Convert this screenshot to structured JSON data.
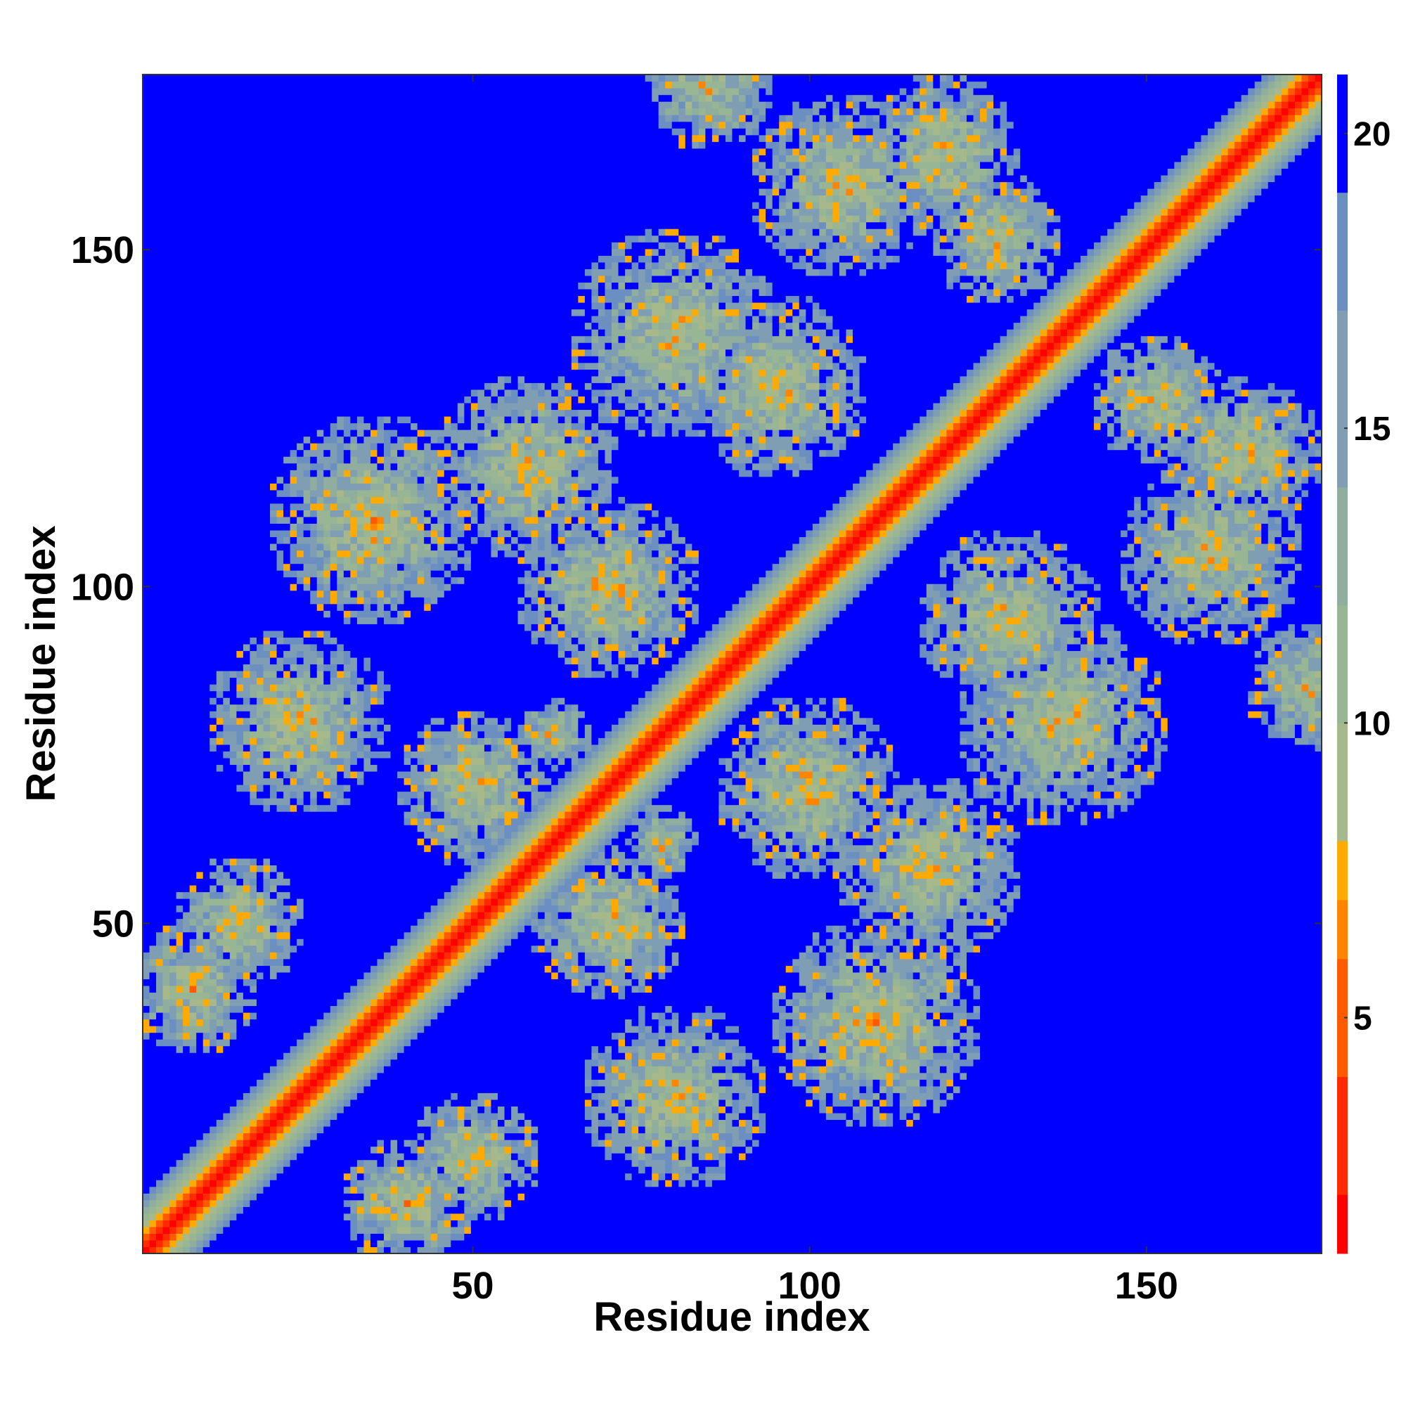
{
  "chart_data": {
    "type": "heatmap",
    "title": "",
    "xlabel": "Residue index",
    "ylabel": "Residue index",
    "n_residues": 176,
    "xlim": [
      1,
      176
    ],
    "ylim": [
      1,
      176
    ],
    "x_ticks": [
      50,
      100,
      150
    ],
    "y_ticks": [
      50,
      100,
      150
    ],
    "colorbar": {
      "ticks": [
        5,
        10,
        15,
        20
      ],
      "range": [
        1,
        21
      ],
      "bands": [
        {
          "max": 2,
          "color": "#ff0000"
        },
        {
          "max": 4,
          "color": "#ff2a00"
        },
        {
          "max": 6,
          "color": "#ff5a00"
        },
        {
          "max": 7,
          "color": "#ff8400"
        },
        {
          "max": 8,
          "color": "#ffaa00"
        },
        {
          "max": 10,
          "color": "#a7b98a"
        },
        {
          "max": 12,
          "color": "#98b694"
        },
        {
          "max": 14,
          "color": "#8fae9e"
        },
        {
          "max": 17,
          "color": "#7f9eb4"
        },
        {
          "max": 19,
          "color": "#6b8fc0"
        },
        {
          "max": 21,
          "color": "#0000ff"
        }
      ]
    },
    "distance_cutoff": 20,
    "diagonal_profile": [
      {
        "offset": 0,
        "value": 1
      },
      {
        "offset": 1,
        "value": 3
      },
      {
        "offset": 2,
        "value": 5.5
      },
      {
        "offset": 3,
        "value": 7.5
      },
      {
        "offset": 4,
        "value": 9
      },
      {
        "offset": 5,
        "value": 11
      },
      {
        "offset": 6,
        "value": 13
      },
      {
        "offset": 7,
        "value": 15
      },
      {
        "offset": 8,
        "value": 17.5
      }
    ],
    "contact_regions": [
      {
        "center": [
          24,
          80
        ],
        "radius": 14
      },
      {
        "center": [
          35,
          110
        ],
        "radius": 16
      },
      {
        "center": [
          58,
          118
        ],
        "radius": 14
      },
      {
        "center": [
          80,
          138
        ],
        "radius": 16
      },
      {
        "center": [
          105,
          160
        ],
        "radius": 14
      },
      {
        "center": [
          50,
          70
        ],
        "radius": 12
      },
      {
        "center": [
          70,
          100
        ],
        "radius": 14
      },
      {
        "center": [
          95,
          130
        ],
        "radius": 14
      },
      {
        "center": [
          120,
          165
        ],
        "radius": 12
      },
      {
        "center": [
          8,
          40
        ],
        "radius": 10
      },
      {
        "center": [
          62,
          78
        ],
        "radius": 6
      },
      {
        "center": [
          15,
          50
        ],
        "radius": 10
      },
      {
        "center": [
          85,
          175
        ],
        "radius": 10
      },
      {
        "center": [
          128,
          152
        ],
        "radius": 10
      }
    ]
  }
}
